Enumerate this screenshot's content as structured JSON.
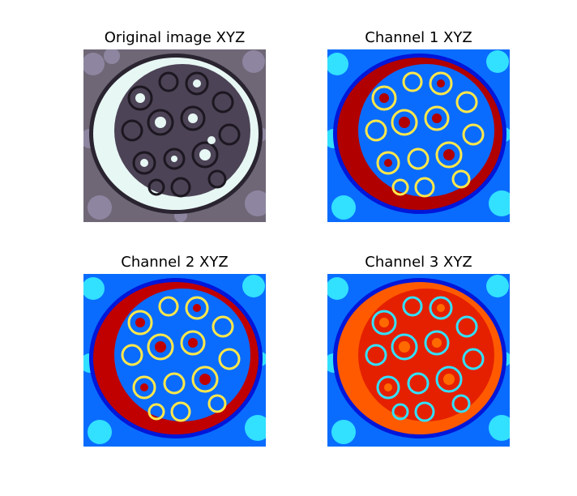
{
  "panels": [
    {
      "title": "Original image XYZ",
      "kind": "original"
    },
    {
      "title": "Channel 1 XYZ",
      "kind": "jet"
    },
    {
      "title": "Channel 2 XYZ",
      "kind": "jet"
    },
    {
      "title": "Channel 3 XYZ",
      "kind": "jet"
    }
  ],
  "colors": {
    "figure_background": "#ffffff",
    "original_background": "#6f6776",
    "original_bowman_space": "#e7f7f4",
    "original_tuft": "#2a2430",
    "original_tissue": "#8e86a0",
    "jet_background": "#0a6cff",
    "jet_cyan": "#32e0ff",
    "jet_yellow": "#ffe84a",
    "jet_dark_red": "#b10000",
    "jet_red": "#e52000",
    "jet_orange": "#ff6a00",
    "jet_dark_blue": "#0016d9"
  }
}
